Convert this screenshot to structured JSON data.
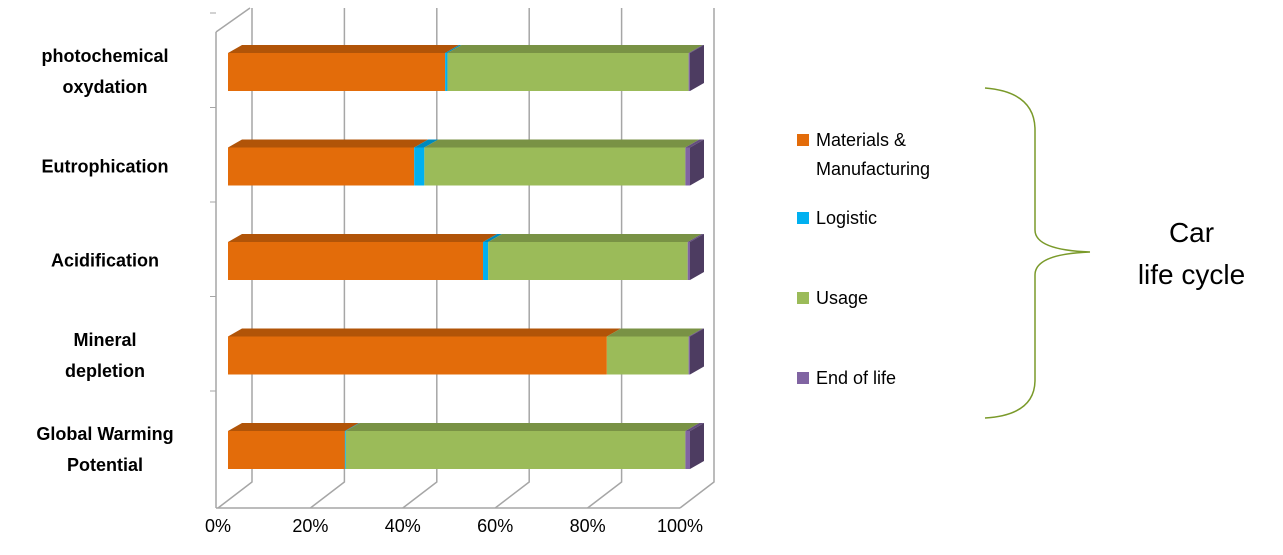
{
  "chart_data": {
    "type": "bar",
    "orientation": "horizontal",
    "stacked": "percent",
    "categories": [
      "photochemical\noxydation",
      "Eutrophication",
      "Acidification",
      "Mineral\ndepletion",
      "Global Warming\nPotential"
    ],
    "series": [
      {
        "name": "Materials & Manufacturing",
        "color": "#E36C0A",
        "values": [
          47,
          40.3,
          55.2,
          82,
          25.3
        ]
      },
      {
        "name": "Logistic",
        "color": "#00B0F0",
        "values": [
          0.5,
          2.2,
          1.1,
          0,
          0.2
        ]
      },
      {
        "name": "Usage",
        "color": "#9BBB59",
        "values": [
          52.2,
          56.5,
          43.2,
          17.7,
          73.5
        ]
      },
      {
        "name": "End of life",
        "color": "#8064A2",
        "values": [
          0.3,
          1,
          0.5,
          0.3,
          1
        ]
      }
    ],
    "xlim": [
      0,
      100
    ],
    "xticks": [
      {
        "value": 0,
        "label": "0%"
      },
      {
        "value": 20,
        "label": "20%"
      },
      {
        "value": 40,
        "label": "40%"
      },
      {
        "value": 60,
        "label": "60%"
      },
      {
        "value": 80,
        "label": "80%"
      },
      {
        "value": 100,
        "label": "100%"
      }
    ],
    "grid": true,
    "legend": "right",
    "annotation": "Car\nlife cycle"
  }
}
